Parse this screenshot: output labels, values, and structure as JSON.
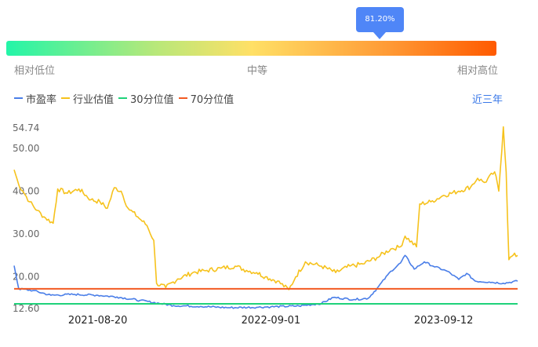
{
  "percentile": {
    "value_label": "81.20%",
    "value": 0.812,
    "low_label": "相对低位",
    "mid_label": "中等",
    "high_label": "相对高位"
  },
  "legend": {
    "range_link": "近三年",
    "items": [
      {
        "label": "市盈率",
        "color": "#4a7ee8"
      },
      {
        "label": "行业估值",
        "color": "#f6c21c"
      },
      {
        "label": "30分位值",
        "color": "#1fd27a"
      },
      {
        "label": "70分位值",
        "color": "#f25a22"
      }
    ]
  },
  "chart_data": {
    "type": "line",
    "x_start": "2021-02-19",
    "x_end": "2024-02-20",
    "x_tick_labels": [
      "2021-08-20",
      "2022-09-01",
      "2023-09-12"
    ],
    "y_tick_labels": [
      "54.74",
      "50.00",
      "40.00",
      "30.00",
      "20.00",
      "12.60"
    ],
    "ylim": [
      12.6,
      54.74
    ],
    "series": [
      {
        "name": "市盈率",
        "color": "#4a7ee8",
        "points": [
          [
            "2021-02-19",
            22.6
          ],
          [
            "2021-03-01",
            17.2
          ],
          [
            "2021-04-01",
            16.8
          ],
          [
            "2021-05-10",
            15.7
          ],
          [
            "2021-07-01",
            15.9
          ],
          [
            "2021-08-20",
            15.7
          ],
          [
            "2021-10-01",
            15.3
          ],
          [
            "2021-11-20",
            14.5
          ],
          [
            "2022-01-01",
            13.8
          ],
          [
            "2022-02-01",
            13.3
          ],
          [
            "2022-04-01",
            13.1
          ],
          [
            "2022-06-01",
            12.8
          ],
          [
            "2022-08-01",
            12.9
          ],
          [
            "2022-09-01",
            13.0
          ],
          [
            "2022-11-01",
            13.2
          ],
          [
            "2022-12-20",
            13.8
          ],
          [
            "2023-01-15",
            15.2
          ],
          [
            "2023-03-01",
            14.7
          ],
          [
            "2023-04-01",
            15.0
          ],
          [
            "2023-04-20",
            17.3
          ],
          [
            "2023-05-20",
            21.3
          ],
          [
            "2023-06-10",
            23.2
          ],
          [
            "2023-06-20",
            25.0
          ],
          [
            "2023-07-10",
            21.8
          ],
          [
            "2023-08-01",
            23.5
          ],
          [
            "2023-08-20",
            22.5
          ],
          [
            "2023-09-20",
            21.3
          ],
          [
            "2023-10-15",
            19.4
          ],
          [
            "2023-11-01",
            20.8
          ],
          [
            "2023-11-20",
            19.0
          ],
          [
            "2023-12-20",
            18.8
          ],
          [
            "2024-01-20",
            18.5
          ],
          [
            "2024-02-20",
            19.0
          ]
        ]
      },
      {
        "name": "行业估值",
        "color": "#f6c21c",
        "points": [
          [
            "2021-02-19",
            45.0
          ],
          [
            "2021-03-01",
            41.5
          ],
          [
            "2021-03-10",
            40.0
          ],
          [
            "2021-03-25",
            37.5
          ],
          [
            "2021-04-10",
            35.5
          ],
          [
            "2021-04-25",
            34.0
          ],
          [
            "2021-05-15",
            32.5
          ],
          [
            "2021-05-25",
            40.5
          ],
          [
            "2021-06-15",
            39.5
          ],
          [
            "2021-07-10",
            40.5
          ],
          [
            "2021-08-05",
            38.0
          ],
          [
            "2021-08-25",
            37.5
          ],
          [
            "2021-09-10",
            36.0
          ],
          [
            "2021-09-25",
            40.8
          ],
          [
            "2021-10-10",
            40.0
          ],
          [
            "2021-10-25",
            36.0
          ],
          [
            "2021-11-15",
            34.0
          ],
          [
            "2021-12-05",
            32.0
          ],
          [
            "2021-12-20",
            28.5
          ],
          [
            "2021-12-26",
            18.5
          ],
          [
            "2022-01-15",
            17.5
          ],
          [
            "2022-02-10",
            19.5
          ],
          [
            "2022-03-15",
            21.0
          ],
          [
            "2022-04-15",
            21.5
          ],
          [
            "2022-05-15",
            22.0
          ],
          [
            "2022-06-15",
            22.5
          ],
          [
            "2022-07-10",
            21.5
          ],
          [
            "2022-08-01",
            21.0
          ],
          [
            "2022-08-20",
            20.0
          ],
          [
            "2022-09-15",
            19.0
          ],
          [
            "2022-10-10",
            17.0
          ],
          [
            "2022-10-25",
            20.0
          ],
          [
            "2022-11-15",
            23.5
          ],
          [
            "2022-12-20",
            22.5
          ],
          [
            "2023-01-20",
            21.0
          ],
          [
            "2023-02-20",
            22.5
          ],
          [
            "2023-03-20",
            23.0
          ],
          [
            "2023-04-20",
            24.5
          ],
          [
            "2023-05-20",
            26.5
          ],
          [
            "2023-06-10",
            27.0
          ],
          [
            "2023-06-20",
            29.5
          ],
          [
            "2023-07-15",
            27.0
          ],
          [
            "2023-07-22",
            37.0
          ],
          [
            "2023-08-15",
            37.5
          ],
          [
            "2023-09-12",
            39.0
          ],
          [
            "2023-10-15",
            40.0
          ],
          [
            "2023-11-10",
            41.0
          ],
          [
            "2023-11-25",
            43.0
          ],
          [
            "2023-12-10",
            42.0
          ],
          [
            "2024-01-01",
            44.5
          ],
          [
            "2024-01-10",
            40.0
          ],
          [
            "2024-01-20",
            55.0
          ],
          [
            "2024-01-26",
            44.5
          ],
          [
            "2024-02-01",
            24.0
          ],
          [
            "2024-02-10",
            25.0
          ],
          [
            "2024-02-20",
            25.0
          ]
        ]
      },
      {
        "name": "30分位值",
        "color": "#1fd27a",
        "points": [
          [
            "2021-02-19",
            13.7
          ],
          [
            "2024-02-20",
            13.7
          ]
        ]
      },
      {
        "name": "70分位值",
        "color": "#f25a22",
        "points": [
          [
            "2021-02-19",
            17.2
          ],
          [
            "2024-02-20",
            17.2
          ]
        ]
      }
    ]
  }
}
